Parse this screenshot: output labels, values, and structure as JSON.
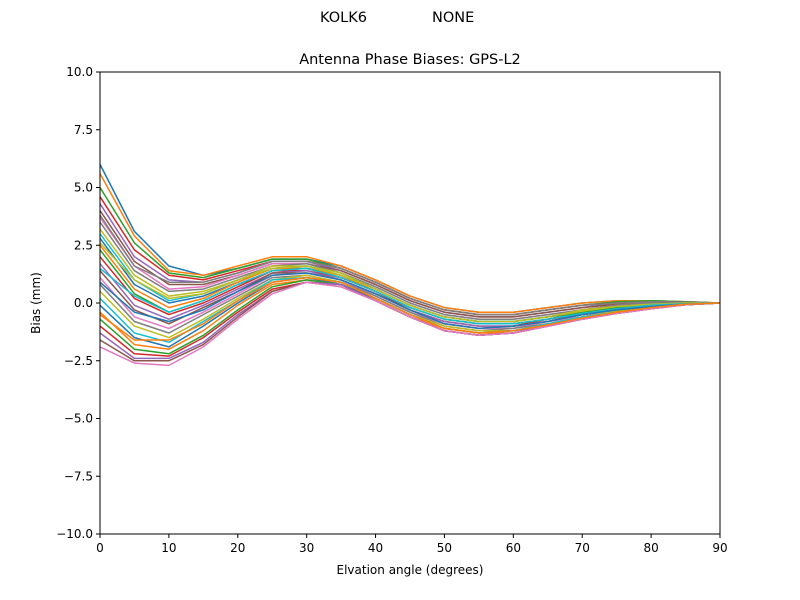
{
  "figure": {
    "suptitle_left": "KOLK6",
    "suptitle_right": "NONE"
  },
  "chart_data": {
    "type": "line",
    "title": "Antenna Phase Biases: GPS-L2",
    "xlabel": "Elvation angle (degrees)",
    "ylabel": "Bias (mm)",
    "xlim": [
      0,
      90
    ],
    "ylim": [
      -10,
      10
    ],
    "xticks": [
      0,
      10,
      20,
      30,
      40,
      50,
      60,
      70,
      80,
      90
    ],
    "xtick_labels": [
      "0",
      "10",
      "20",
      "30",
      "40",
      "50",
      "60",
      "70",
      "80",
      "90"
    ],
    "yticks": [
      -10,
      -7.5,
      -5,
      -2.5,
      0,
      2.5,
      5,
      7.5,
      10
    ],
    "ytick_labels": [
      "−10.0",
      "−7.5",
      "−5.0",
      "−2.5",
      "0.0",
      "2.5",
      "5.0",
      "7.5",
      "10.0"
    ],
    "grid": false,
    "legend": "none",
    "colors": [
      "#1f77b4",
      "#ff7f0e",
      "#2ca02c",
      "#d62728",
      "#9467bd",
      "#8c564b",
      "#e377c2",
      "#7f7f7f",
      "#bcbd22",
      "#17becf"
    ],
    "x": [
      0,
      5,
      10,
      15,
      20,
      25,
      30,
      35,
      40,
      45,
      50,
      55,
      60,
      65,
      70,
      75,
      80,
      85,
      90
    ],
    "series": [
      {
        "values": [
          6.0,
          3.1,
          1.6,
          1.2,
          1.5,
          1.9,
          1.9,
          1.6,
          1.0,
          0.3,
          -0.2,
          -0.4,
          -0.4,
          -0.2,
          0.0,
          0.1,
          0.1,
          0.05,
          0.0
        ]
      },
      {
        "values": [
          5.6,
          2.9,
          1.4,
          1.2,
          1.6,
          2.0,
          2.0,
          1.6,
          1.0,
          0.3,
          -0.2,
          -0.4,
          -0.4,
          -0.2,
          0.0,
          0.1,
          0.1,
          0.05,
          0.0
        ]
      },
      {
        "values": [
          5.0,
          2.6,
          1.3,
          1.1,
          1.5,
          1.9,
          1.9,
          1.5,
          0.9,
          0.2,
          -0.3,
          -0.5,
          -0.5,
          -0.3,
          -0.1,
          0.05,
          0.1,
          0.05,
          0.0
        ]
      },
      {
        "values": [
          4.6,
          2.3,
          1.2,
          1.0,
          1.4,
          1.8,
          1.8,
          1.5,
          0.9,
          0.2,
          -0.3,
          -0.5,
          -0.5,
          -0.3,
          -0.1,
          0.0,
          0.05,
          0.03,
          0.0
        ]
      },
      {
        "values": [
          4.3,
          2.0,
          1.0,
          0.9,
          1.3,
          1.8,
          1.8,
          1.4,
          0.8,
          0.1,
          -0.4,
          -0.6,
          -0.6,
          -0.4,
          -0.2,
          0.0,
          0.05,
          0.03,
          0.0
        ]
      },
      {
        "values": [
          4.0,
          1.8,
          0.8,
          0.8,
          1.2,
          1.7,
          1.7,
          1.4,
          0.8,
          0.1,
          -0.4,
          -0.6,
          -0.6,
          -0.4,
          -0.2,
          -0.05,
          0.0,
          0.0,
          0.0
        ]
      },
      {
        "values": [
          3.7,
          1.6,
          0.6,
          0.7,
          1.2,
          1.7,
          1.7,
          1.3,
          0.7,
          0.0,
          -0.5,
          -0.7,
          -0.7,
          -0.5,
          -0.3,
          -0.1,
          0.0,
          0.0,
          0.0
        ]
      },
      {
        "values": [
          3.5,
          1.4,
          0.5,
          0.6,
          1.1,
          1.6,
          1.7,
          1.3,
          0.7,
          0.0,
          -0.5,
          -0.7,
          -0.7,
          -0.5,
          -0.3,
          -0.1,
          0.0,
          0.0,
          0.0
        ]
      },
      {
        "values": [
          3.2,
          1.2,
          0.3,
          0.5,
          1.0,
          1.6,
          1.6,
          1.3,
          0.6,
          -0.1,
          -0.6,
          -0.8,
          -0.8,
          -0.6,
          -0.3,
          -0.15,
          -0.05,
          0.0,
          0.0
        ]
      },
      {
        "values": [
          3.0,
          1.0,
          0.1,
          0.4,
          1.0,
          1.5,
          1.6,
          1.2,
          0.6,
          -0.1,
          -0.6,
          -0.8,
          -0.8,
          -0.6,
          -0.4,
          -0.2,
          -0.05,
          0.0,
          0.0
        ]
      },
      {
        "values": [
          2.8,
          0.8,
          0.0,
          0.3,
          0.9,
          1.5,
          1.5,
          1.2,
          0.6,
          -0.1,
          -0.6,
          -0.8,
          -0.8,
          -0.6,
          -0.4,
          -0.2,
          -0.05,
          0.0,
          0.0
        ]
      },
      {
        "values": [
          2.5,
          0.6,
          -0.2,
          0.2,
          0.9,
          1.5,
          1.5,
          1.2,
          0.5,
          -0.2,
          -0.7,
          -0.9,
          -0.9,
          -0.7,
          -0.4,
          -0.2,
          -0.1,
          -0.03,
          0.0
        ]
      },
      {
        "values": [
          2.3,
          0.4,
          -0.4,
          0.1,
          0.8,
          1.4,
          1.5,
          1.1,
          0.5,
          -0.2,
          -0.7,
          -0.9,
          -0.9,
          -0.7,
          -0.4,
          -0.2,
          -0.1,
          -0.03,
          0.0
        ]
      },
      {
        "values": [
          2.0,
          0.2,
          -0.5,
          0.0,
          0.7,
          1.4,
          1.4,
          1.1,
          0.5,
          -0.3,
          -0.8,
          -1.0,
          -1.0,
          -0.7,
          -0.5,
          -0.3,
          -0.1,
          -0.03,
          0.0
        ]
      },
      {
        "values": [
          1.7,
          -0.1,
          -0.7,
          -0.1,
          0.6,
          1.3,
          1.4,
          1.0,
          0.4,
          -0.3,
          -0.8,
          -1.0,
          -1.0,
          -0.8,
          -0.5,
          -0.3,
          -0.15,
          -0.05,
          0.0
        ]
      },
      {
        "values": [
          1.4,
          -0.3,
          -0.9,
          -0.2,
          0.5,
          1.3,
          1.3,
          1.0,
          0.4,
          -0.3,
          -0.9,
          -1.1,
          -1.0,
          -0.8,
          -0.5,
          -0.3,
          -0.15,
          -0.05,
          0.0
        ]
      },
      {
        "values": [
          1.1,
          -0.6,
          -1.1,
          -0.4,
          0.4,
          1.2,
          1.3,
          1.0,
          0.3,
          -0.4,
          -0.9,
          -1.1,
          -1.1,
          -0.8,
          -0.6,
          -0.3,
          -0.15,
          -0.05,
          0.0
        ]
      },
      {
        "values": [
          0.8,
          -0.8,
          -1.3,
          -0.5,
          0.3,
          1.1,
          1.2,
          0.9,
          0.3,
          -0.4,
          -1.0,
          -1.2,
          -1.1,
          -0.9,
          -0.6,
          -0.35,
          -0.2,
          -0.05,
          0.0
        ]
      },
      {
        "values": [
          0.5,
          -1.0,
          -1.5,
          -0.7,
          0.2,
          1.0,
          1.2,
          0.9,
          0.2,
          -0.5,
          -1.0,
          -1.2,
          -1.2,
          -0.9,
          -0.6,
          -0.35,
          -0.2,
          -0.05,
          0.0
        ]
      },
      {
        "values": [
          0.2,
          -1.3,
          -1.7,
          -0.8,
          0.1,
          1.0,
          1.1,
          0.9,
          0.2,
          -0.5,
          -1.1,
          -1.3,
          -1.2,
          -0.9,
          -0.6,
          -0.4,
          -0.2,
          -0.05,
          0.0
        ]
      },
      {
        "values": [
          -0.1,
          -1.5,
          -1.9,
          -1.0,
          0.0,
          0.9,
          1.1,
          0.8,
          0.2,
          -0.5,
          -1.1,
          -1.3,
          -1.2,
          -1.0,
          -0.7,
          -0.4,
          -0.2,
          -0.05,
          0.0
        ]
      },
      {
        "values": [
          -0.4,
          -1.8,
          -2.0,
          -1.2,
          -0.1,
          0.8,
          1.0,
          0.8,
          0.1,
          -0.6,
          -1.1,
          -1.3,
          -1.3,
          -1.0,
          -0.7,
          -0.4,
          -0.2,
          -0.05,
          0.0
        ]
      },
      {
        "values": [
          -0.7,
          -2.0,
          -2.2,
          -1.4,
          -0.3,
          0.7,
          1.0,
          0.8,
          0.1,
          -0.6,
          -1.2,
          -1.4,
          -1.3,
          -1.0,
          -0.7,
          -0.4,
          -0.2,
          -0.08,
          0.0
        ]
      },
      {
        "values": [
          -1.0,
          -2.2,
          -2.3,
          -1.5,
          -0.4,
          0.6,
          0.9,
          0.8,
          0.1,
          -0.6,
          -1.2,
          -1.4,
          -1.3,
          -1.0,
          -0.7,
          -0.45,
          -0.25,
          -0.08,
          0.0
        ]
      },
      {
        "values": [
          -1.3,
          -2.4,
          -2.4,
          -1.7,
          -0.5,
          0.5,
          0.9,
          0.8,
          0.1,
          -0.6,
          -1.2,
          -1.4,
          -1.3,
          -1.0,
          -0.7,
          -0.45,
          -0.25,
          -0.08,
          0.0
        ]
      },
      {
        "values": [
          -1.6,
          -2.5,
          -2.5,
          -1.8,
          -0.6,
          0.5,
          0.9,
          0.7,
          0.1,
          -0.6,
          -1.2,
          -1.4,
          -1.3,
          -1.0,
          -0.7,
          -0.45,
          -0.25,
          -0.08,
          0.0
        ]
      },
      {
        "values": [
          -1.9,
          -2.6,
          -2.7,
          -1.9,
          -0.7,
          0.4,
          0.9,
          0.7,
          0.1,
          -0.6,
          -1.2,
          -1.4,
          -1.3,
          -1.0,
          -0.7,
          -0.45,
          -0.25,
          -0.08,
          0.0
        ]
      },
      {
        "values": [
          3.8,
          1.6,
          0.9,
          0.9,
          1.3,
          1.8,
          1.8,
          1.5,
          0.9,
          0.2,
          -0.3,
          -0.5,
          -0.5,
          -0.3,
          -0.1,
          0.0,
          0.05,
          0.03,
          0.0
        ]
      },
      {
        "values": [
          2.6,
          1.0,
          0.2,
          0.4,
          1.0,
          1.5,
          1.6,
          1.2,
          0.6,
          -0.1,
          -0.6,
          -0.8,
          -0.8,
          -0.6,
          -0.35,
          -0.15,
          -0.05,
          0.0,
          0.0
        ]
      },
      {
        "values": [
          1.5,
          0.3,
          -0.4,
          0.1,
          0.8,
          1.4,
          1.5,
          1.1,
          0.5,
          -0.2,
          -0.7,
          -0.9,
          -0.9,
          -0.7,
          -0.45,
          -0.25,
          -0.1,
          -0.03,
          0.0
        ]
      },
      {
        "values": [
          0.9,
          -0.4,
          -0.8,
          -0.3,
          0.5,
          1.2,
          1.3,
          1.0,
          0.4,
          -0.3,
          -0.9,
          -1.1,
          -1.0,
          -0.8,
          -0.5,
          -0.3,
          -0.15,
          -0.05,
          0.0
        ]
      },
      {
        "values": [
          -0.5,
          -1.6,
          -1.6,
          -0.9,
          0.1,
          0.9,
          1.1,
          0.9,
          0.2,
          -0.5,
          -1.1,
          -1.3,
          -1.2,
          -0.95,
          -0.65,
          -0.4,
          -0.2,
          -0.05,
          0.0
        ]
      }
    ]
  }
}
